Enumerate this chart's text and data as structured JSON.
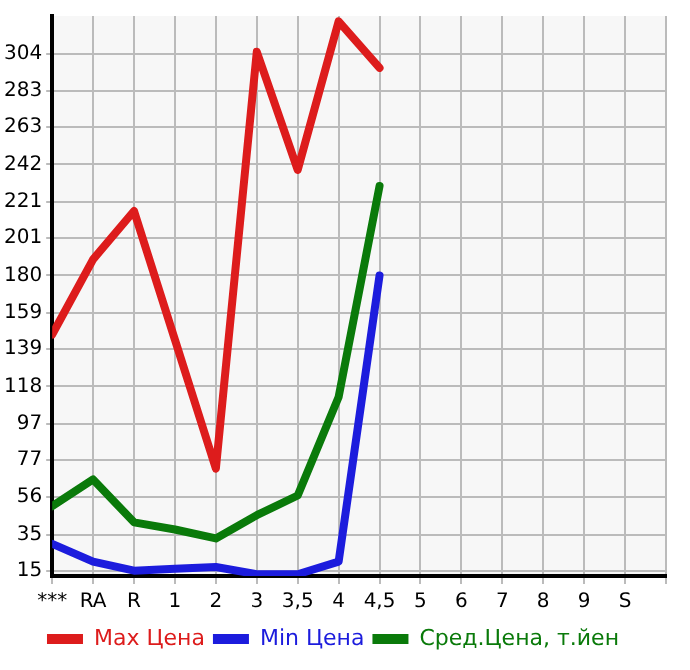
{
  "chart_data": {
    "type": "line",
    "categories": [
      "***",
      "RA",
      "R",
      "1",
      "2",
      "3",
      "3,5",
      "4",
      "4,5",
      "5",
      "6",
      "7",
      "8",
      "9",
      "S"
    ],
    "series": [
      {
        "name": "Max Цена",
        "color": "#dd1c1c",
        "values": [
          147,
          189,
          216,
          144,
          72,
          305,
          239,
          322,
          296,
          null,
          null,
          null,
          null,
          null,
          null
        ]
      },
      {
        "name": "Min Цена",
        "color": "#1c1cdd",
        "values": [
          30,
          20,
          15,
          16,
          17,
          13,
          13,
          20,
          180,
          null,
          null,
          null,
          null,
          null,
          null
        ]
      },
      {
        "name": "Сред.Цена, т.йен",
        "color": "#0a7a0a",
        "values": [
          51,
          66,
          42,
          38,
          33,
          46,
          57,
          112,
          230,
          null,
          null,
          null,
          null,
          null,
          null
        ]
      }
    ],
    "ylim": [
      12,
      325
    ],
    "yticks": [
      15,
      35,
      56,
      77,
      97,
      118,
      139,
      159,
      180,
      201,
      221,
      242,
      263,
      283,
      304
    ],
    "grid": true,
    "legend": "bottom",
    "marker": "none",
    "line_style": "solid"
  }
}
